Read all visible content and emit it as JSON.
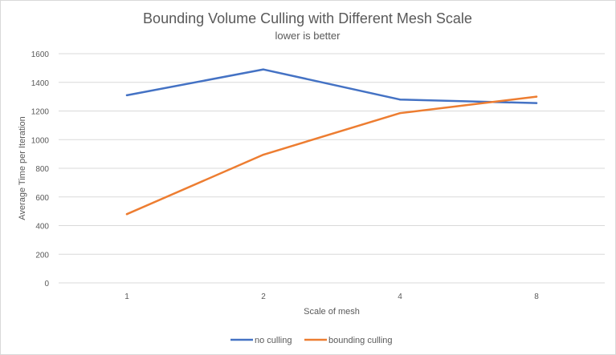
{
  "chart_data": {
    "type": "line",
    "title": "Bounding Volume Culling with Different Mesh Scale",
    "subtitle": "lower is better",
    "xlabel": "Scale of mesh",
    "ylabel": "Average Time per Iteration",
    "categories": [
      "1",
      "2",
      "4",
      "8"
    ],
    "ylim": [
      0,
      1600
    ],
    "yticks": [
      0,
      200,
      400,
      600,
      800,
      1000,
      1200,
      1400,
      1600
    ],
    "grid": "horizontal",
    "legend": "bottom",
    "series": [
      {
        "name": "no culling",
        "color": "#4472c4",
        "values": [
          1310,
          1490,
          1280,
          1255
        ]
      },
      {
        "name": "bounding culling",
        "color": "#ed7d31",
        "values": [
          480,
          895,
          1185,
          1300
        ]
      }
    ]
  }
}
